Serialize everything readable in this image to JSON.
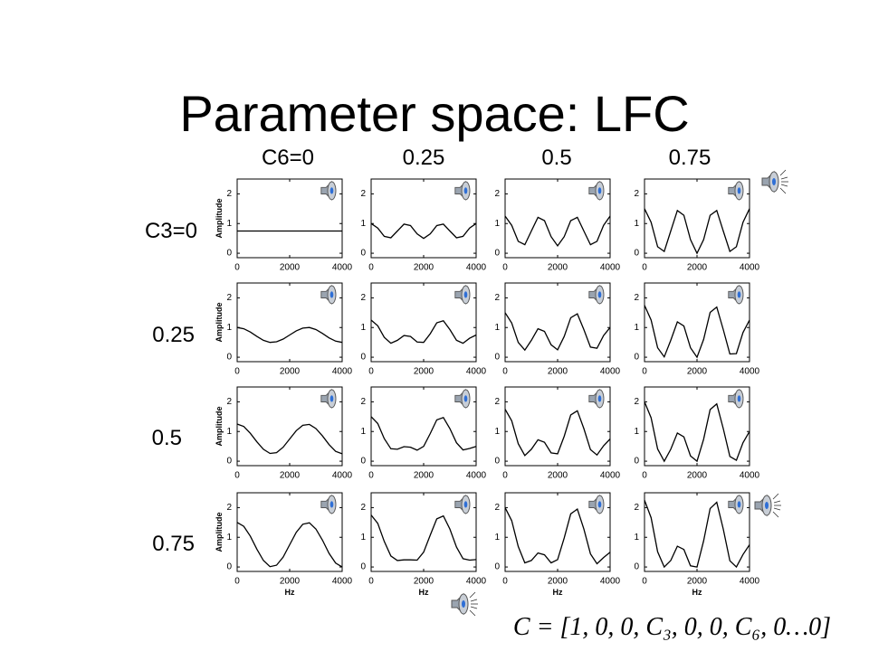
{
  "title": "Parameter space: LFC",
  "column_labels": [
    "C6=0",
    "0.25",
    "0.5",
    "0.75"
  ],
  "row_labels": [
    "C3=0",
    "0.25",
    "0.5",
    "0.75"
  ],
  "formula": "C = [1, 0, 0, C₃, 0, 0, C₆, 0…0]",
  "chart_data": [
    {
      "type": "line",
      "ylabel": "Amplitude",
      "x": [
        0,
        250,
        500,
        750,
        1000,
        1250,
        1500,
        1750,
        2000,
        2250,
        2500,
        2750,
        3000,
        3250,
        3500,
        3750,
        4000
      ],
      "values": [
        0.75,
        0.75,
        0.75,
        0.75,
        0.75,
        0.75,
        0.75,
        0.75,
        0.75,
        0.75,
        0.75,
        0.75,
        0.75,
        0.75,
        0.75,
        0.75,
        0.75
      ],
      "xlim": [
        0,
        4000
      ],
      "ylim": [
        -0.15,
        2.5
      ],
      "xticks": [
        0,
        2000,
        4000
      ],
      "yticks": [
        0,
        1,
        2
      ],
      "color": "#000000"
    },
    {
      "type": "line",
      "x": [
        0,
        250,
        500,
        750,
        1000,
        1250,
        1500,
        1750,
        2000,
        2250,
        2500,
        2750,
        3000,
        3250,
        3500,
        3750,
        4000
      ],
      "values": [
        1,
        0.85,
        0.57,
        0.52,
        0.75,
        0.98,
        0.93,
        0.65,
        0.5,
        0.65,
        0.93,
        0.98,
        0.75,
        0.52,
        0.57,
        0.85,
        1
      ],
      "xlim": [
        0,
        4000
      ],
      "ylim": [
        -0.15,
        2.5
      ],
      "xticks": [
        0,
        2000,
        4000
      ],
      "yticks": [
        0,
        1,
        2
      ],
      "color": "#000000"
    },
    {
      "type": "line",
      "x": [
        0,
        250,
        500,
        750,
        1000,
        1250,
        1500,
        1750,
        2000,
        2250,
        2500,
        2750,
        3000,
        3250,
        3500,
        3750,
        4000
      ],
      "values": [
        1.25,
        0.94,
        0.4,
        0.29,
        0.75,
        1.21,
        1.1,
        0.56,
        0.25,
        0.56,
        1.1,
        1.21,
        0.75,
        0.29,
        0.4,
        0.94,
        1.25
      ],
      "xlim": [
        0,
        4000
      ],
      "ylim": [
        -0.15,
        2.5
      ],
      "xticks": [
        0,
        2000,
        4000
      ],
      "yticks": [
        0,
        1,
        2
      ],
      "color": "#000000"
    },
    {
      "type": "line",
      "x": [
        0,
        250,
        500,
        750,
        1000,
        1250,
        1500,
        1750,
        2000,
        2250,
        2500,
        2750,
        3000,
        3250,
        3500,
        3750,
        4000
      ],
      "values": [
        1.5,
        1.04,
        0.22,
        0.06,
        0.75,
        1.44,
        1.28,
        0.46,
        0,
        0.46,
        1.28,
        1.44,
        0.75,
        0.06,
        0.22,
        1.04,
        1.5
      ],
      "xlim": [
        0,
        4000
      ],
      "ylim": [
        -0.15,
        2.5
      ],
      "xticks": [
        0,
        2000,
        4000
      ],
      "yticks": [
        0,
        1,
        2
      ],
      "color": "#000000"
    },
    {
      "type": "line",
      "ylabel": "Amplitude",
      "x": [
        0,
        250,
        500,
        750,
        1000,
        1250,
        1500,
        1750,
        2000,
        2250,
        2500,
        2750,
        3000,
        3250,
        3500,
        3750,
        4000
      ],
      "values": [
        1,
        0.96,
        0.85,
        0.7,
        0.57,
        0.5,
        0.52,
        0.61,
        0.75,
        0.89,
        0.98,
        1,
        0.93,
        0.8,
        0.65,
        0.54,
        0.5
      ],
      "xlim": [
        0,
        4000
      ],
      "ylim": [
        -0.15,
        2.5
      ],
      "xticks": [
        0,
        2000,
        4000
      ],
      "yticks": [
        0,
        1,
        2
      ],
      "color": "#000000"
    },
    {
      "type": "line",
      "x": [
        0,
        250,
        500,
        750,
        1000,
        1250,
        1500,
        1750,
        2000,
        2250,
        2500,
        2750,
        3000,
        3250,
        3500,
        3750,
        4000
      ],
      "values": [
        1.25,
        1.06,
        0.67,
        0.47,
        0.57,
        0.73,
        0.7,
        0.51,
        0.5,
        0.79,
        1.16,
        1.23,
        0.93,
        0.57,
        0.47,
        0.64,
        0.75
      ],
      "xlim": [
        0,
        4000
      ],
      "ylim": [
        -0.15,
        2.5
      ],
      "xticks": [
        0,
        2000,
        4000
      ],
      "yticks": [
        0,
        1,
        2
      ],
      "color": "#000000"
    },
    {
      "type": "line",
      "x": [
        0,
        250,
        500,
        750,
        1000,
        1250,
        1500,
        1750,
        2000,
        2250,
        2500,
        2750,
        3000,
        3250,
        3500,
        3750,
        4000
      ],
      "values": [
        1.5,
        1.15,
        0.5,
        0.24,
        0.57,
        0.96,
        0.87,
        0.42,
        0.25,
        0.7,
        1.33,
        1.46,
        0.93,
        0.34,
        0.3,
        0.73,
        1
      ],
      "xlim": [
        0,
        4000
      ],
      "ylim": [
        -0.15,
        2.5
      ],
      "xticks": [
        0,
        2000,
        4000
      ],
      "yticks": [
        0,
        1,
        2
      ],
      "color": "#000000"
    },
    {
      "type": "line",
      "x": [
        0,
        250,
        500,
        750,
        1000,
        1250,
        1500,
        1750,
        2000,
        2250,
        2500,
        2750,
        3000,
        3250,
        3500,
        3750,
        4000
      ],
      "values": [
        1.75,
        1.25,
        0.32,
        0.01,
        0.57,
        1.19,
        1.05,
        0.32,
        0,
        0.6,
        1.51,
        1.69,
        0.93,
        0.11,
        0.12,
        0.83,
        1.25
      ],
      "xlim": [
        0,
        4000
      ],
      "ylim": [
        -0.15,
        2.5
      ],
      "xticks": [
        0,
        2000,
        4000
      ],
      "yticks": [
        0,
        1,
        2
      ],
      "color": "#000000"
    },
    {
      "type": "line",
      "ylabel": "Amplitude",
      "x": [
        0,
        250,
        500,
        750,
        1000,
        1250,
        1500,
        1750,
        2000,
        2250,
        2500,
        2750,
        3000,
        3250,
        3500,
        3750,
        4000
      ],
      "values": [
        1.25,
        1.17,
        0.94,
        0.65,
        0.4,
        0.26,
        0.29,
        0.47,
        0.75,
        1.03,
        1.21,
        1.24,
        1.1,
        0.85,
        0.56,
        0.33,
        0.25
      ],
      "xlim": [
        0,
        4000
      ],
      "ylim": [
        -0.15,
        2.5
      ],
      "xticks": [
        0,
        2000,
        4000
      ],
      "yticks": [
        0,
        1,
        2
      ],
      "color": "#000000"
    },
    {
      "type": "line",
      "x": [
        0,
        250,
        500,
        750,
        1000,
        1250,
        1500,
        1750,
        2000,
        2250,
        2500,
        2750,
        3000,
        3250,
        3500,
        3750,
        4000
      ],
      "values": [
        1.5,
        1.27,
        0.76,
        0.42,
        0.4,
        0.49,
        0.47,
        0.37,
        0.5,
        0.93,
        1.39,
        1.47,
        1.1,
        0.62,
        0.38,
        0.43,
        0.5
      ],
      "xlim": [
        0,
        4000
      ],
      "ylim": [
        -0.15,
        2.5
      ],
      "xticks": [
        0,
        2000,
        4000
      ],
      "yticks": [
        0,
        1,
        2
      ],
      "color": "#000000"
    },
    {
      "type": "line",
      "x": [
        0,
        250,
        500,
        750,
        1000,
        1250,
        1500,
        1750,
        2000,
        2250,
        2500,
        2750,
        3000,
        3250,
        3500,
        3750,
        4000
      ],
      "values": [
        1.75,
        1.36,
        0.59,
        0.19,
        0.4,
        0.72,
        0.64,
        0.28,
        0.25,
        0.84,
        1.56,
        1.7,
        1.1,
        0.39,
        0.21,
        0.52,
        0.75
      ],
      "xlim": [
        0,
        4000
      ],
      "ylim": [
        -0.15,
        2.5
      ],
      "xticks": [
        0,
        2000,
        4000
      ],
      "yticks": [
        0,
        1,
        2
      ],
      "color": "#000000"
    },
    {
      "type": "line",
      "x": [
        0,
        250,
        500,
        750,
        1000,
        1250,
        1500,
        1750,
        2000,
        2250,
        2500,
        2750,
        3000,
        3250,
        3500,
        3750,
        4000
      ],
      "values": [
        2,
        1.46,
        0.41,
        0,
        0.4,
        0.95,
        0.82,
        0.18,
        0,
        0.74,
        1.74,
        1.93,
        1.1,
        0.16,
        0.03,
        0.62,
        1
      ],
      "xlim": [
        0,
        4000
      ],
      "ylim": [
        -0.15,
        2.5
      ],
      "xticks": [
        0,
        2000,
        4000
      ],
      "yticks": [
        0,
        1,
        2
      ],
      "color": "#000000"
    },
    {
      "type": "line",
      "ylabel": "Amplitude",
      "xlabel": "Hz",
      "x": [
        0,
        250,
        500,
        750,
        1000,
        1250,
        1500,
        1750,
        2000,
        2250,
        2500,
        2750,
        3000,
        3250,
        3500,
        3750,
        4000
      ],
      "values": [
        1.5,
        1.37,
        1.04,
        0.6,
        0.22,
        0.01,
        0.06,
        0.33,
        0.75,
        1.17,
        1.44,
        1.49,
        1.28,
        0.9,
        0.46,
        0.13,
        0
      ],
      "xlim": [
        0,
        4000
      ],
      "ylim": [
        -0.15,
        2.5
      ],
      "xticks": [
        0,
        2000,
        4000
      ],
      "yticks": [
        0,
        1,
        2
      ],
      "color": "#000000"
    },
    {
      "type": "line",
      "xlabel": "Hz",
      "x": [
        0,
        250,
        500,
        750,
        1000,
        1250,
        1500,
        1750,
        2000,
        2250,
        2500,
        2750,
        3000,
        3250,
        3500,
        3750,
        4000
      ],
      "values": [
        1.75,
        1.47,
        0.86,
        0.37,
        0.22,
        0.24,
        0.24,
        0.23,
        0.5,
        1.07,
        1.62,
        1.72,
        1.28,
        0.67,
        0.28,
        0.23,
        0.25
      ],
      "xlim": [
        0,
        4000
      ],
      "ylim": [
        -0.15,
        2.5
      ],
      "xticks": [
        0,
        2000,
        4000
      ],
      "yticks": [
        0,
        1,
        2
      ],
      "color": "#000000"
    },
    {
      "type": "line",
      "xlabel": "Hz",
      "x": [
        0,
        250,
        500,
        750,
        1000,
        1250,
        1500,
        1750,
        2000,
        2250,
        2500,
        2750,
        3000,
        3250,
        3500,
        3750,
        4000
      ],
      "values": [
        2,
        1.56,
        0.69,
        0.14,
        0.22,
        0.47,
        0.41,
        0.14,
        0.25,
        0.98,
        1.79,
        1.95,
        1.28,
        0.44,
        0.11,
        0.32,
        0.5
      ],
      "xlim": [
        0,
        4000
      ],
      "ylim": [
        -0.15,
        2.5
      ],
      "xticks": [
        0,
        2000,
        4000
      ],
      "yticks": [
        0,
        1,
        2
      ],
      "color": "#000000"
    },
    {
      "type": "line",
      "xlabel": "Hz",
      "x": [
        0,
        250,
        500,
        750,
        1000,
        1250,
        1500,
        1750,
        2000,
        2250,
        2500,
        2750,
        3000,
        3250,
        3500,
        3750,
        4000
      ],
      "values": [
        2.25,
        1.66,
        0.51,
        0,
        0.22,
        0.7,
        0.59,
        0.04,
        0,
        0.88,
        1.97,
        2.18,
        1.28,
        0.21,
        0,
        0.42,
        0.75
      ],
      "xlim": [
        0,
        4000
      ],
      "ylim": [
        -0.15,
        2.5
      ],
      "xticks": [
        0,
        2000,
        4000
      ],
      "yticks": [
        0,
        1,
        2
      ],
      "color": "#000000"
    }
  ]
}
